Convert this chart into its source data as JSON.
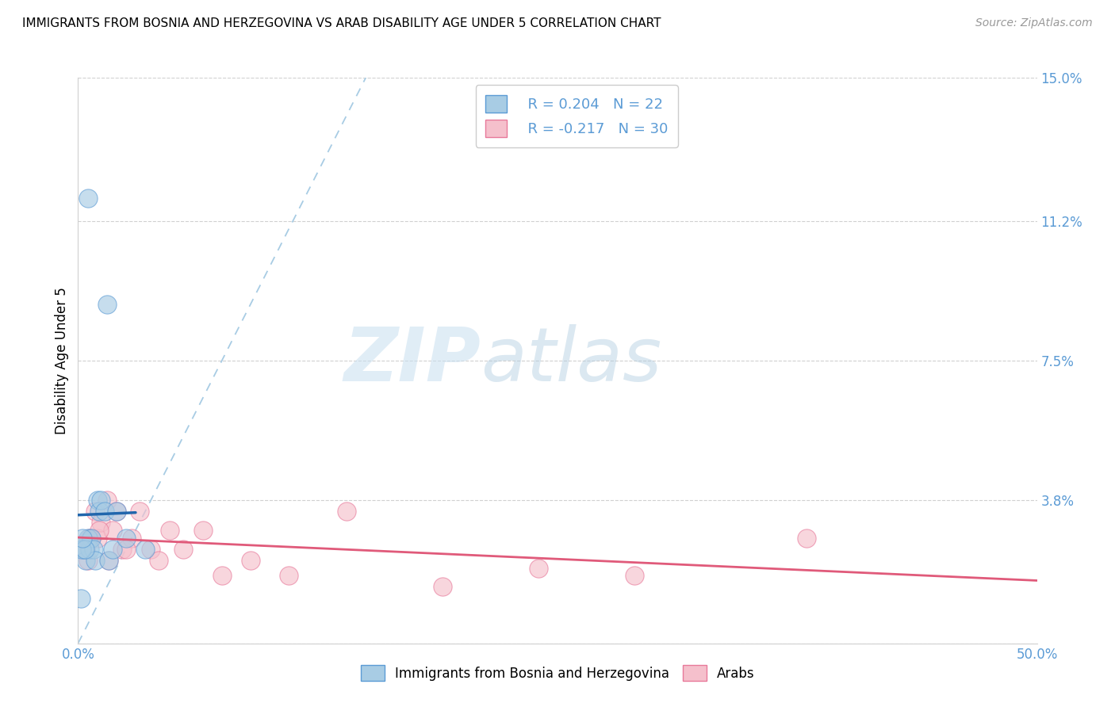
{
  "title": "IMMIGRANTS FROM BOSNIA AND HERZEGOVINA VS ARAB DISABILITY AGE UNDER 5 CORRELATION CHART",
  "source": "Source: ZipAtlas.com",
  "ylabel_label": "Disability Age Under 5",
  "ylabel_values": [
    0.0,
    3.8,
    7.5,
    11.2,
    15.0
  ],
  "xlim": [
    0.0,
    50.0
  ],
  "ylim": [
    0.0,
    15.0
  ],
  "watermark_zip": "ZIP",
  "watermark_atlas": "atlas",
  "legend_bosnia_R": "R = 0.204",
  "legend_bosnia_N": "N = 22",
  "legend_arab_R": "R = -0.217",
  "legend_arab_N": "N = 30",
  "color_bosnia_fill": "#a8cce4",
  "color_bosnia_edge": "#5b9bd5",
  "color_arab_fill": "#f5c0cc",
  "color_arab_edge": "#e8799a",
  "color_bosnia_line": "#2166ac",
  "color_arab_line": "#e05a7a",
  "color_diagonal": "#a8cce4",
  "color_axis": "#5b9bd5",
  "color_grid": "#d0d0d0",
  "bosnia_x": [
    0.5,
    1.5,
    0.3,
    0.4,
    0.5,
    0.6,
    0.7,
    0.8,
    0.9,
    1.0,
    1.1,
    1.2,
    1.4,
    1.6,
    1.8,
    2.0,
    2.5,
    3.5,
    0.2,
    0.35,
    0.25,
    0.15
  ],
  "bosnia_y": [
    11.8,
    9.0,
    2.5,
    2.2,
    2.8,
    2.5,
    2.8,
    2.5,
    2.2,
    3.8,
    3.5,
    3.8,
    3.5,
    2.2,
    2.5,
    3.5,
    2.8,
    2.5,
    2.5,
    2.5,
    2.8,
    1.2
  ],
  "arab_x": [
    0.3,
    0.5,
    0.7,
    0.9,
    1.0,
    1.2,
    1.5,
    1.8,
    2.0,
    2.3,
    2.8,
    3.2,
    3.8,
    4.2,
    4.8,
    5.5,
    6.5,
    7.5,
    9.0,
    11.0,
    14.0,
    19.0,
    24.0,
    29.0,
    38.0,
    0.4,
    0.6,
    1.1,
    1.6,
    2.5
  ],
  "arab_y": [
    2.5,
    2.2,
    2.8,
    3.5,
    2.8,
    3.2,
    3.8,
    3.0,
    3.5,
    2.5,
    2.8,
    3.5,
    2.5,
    2.2,
    3.0,
    2.5,
    3.0,
    1.8,
    2.2,
    1.8,
    3.5,
    1.5,
    2.0,
    1.8,
    2.8,
    2.5,
    2.8,
    3.0,
    2.2,
    2.5
  ],
  "title_fontsize": 11,
  "scatter_size": 280
}
